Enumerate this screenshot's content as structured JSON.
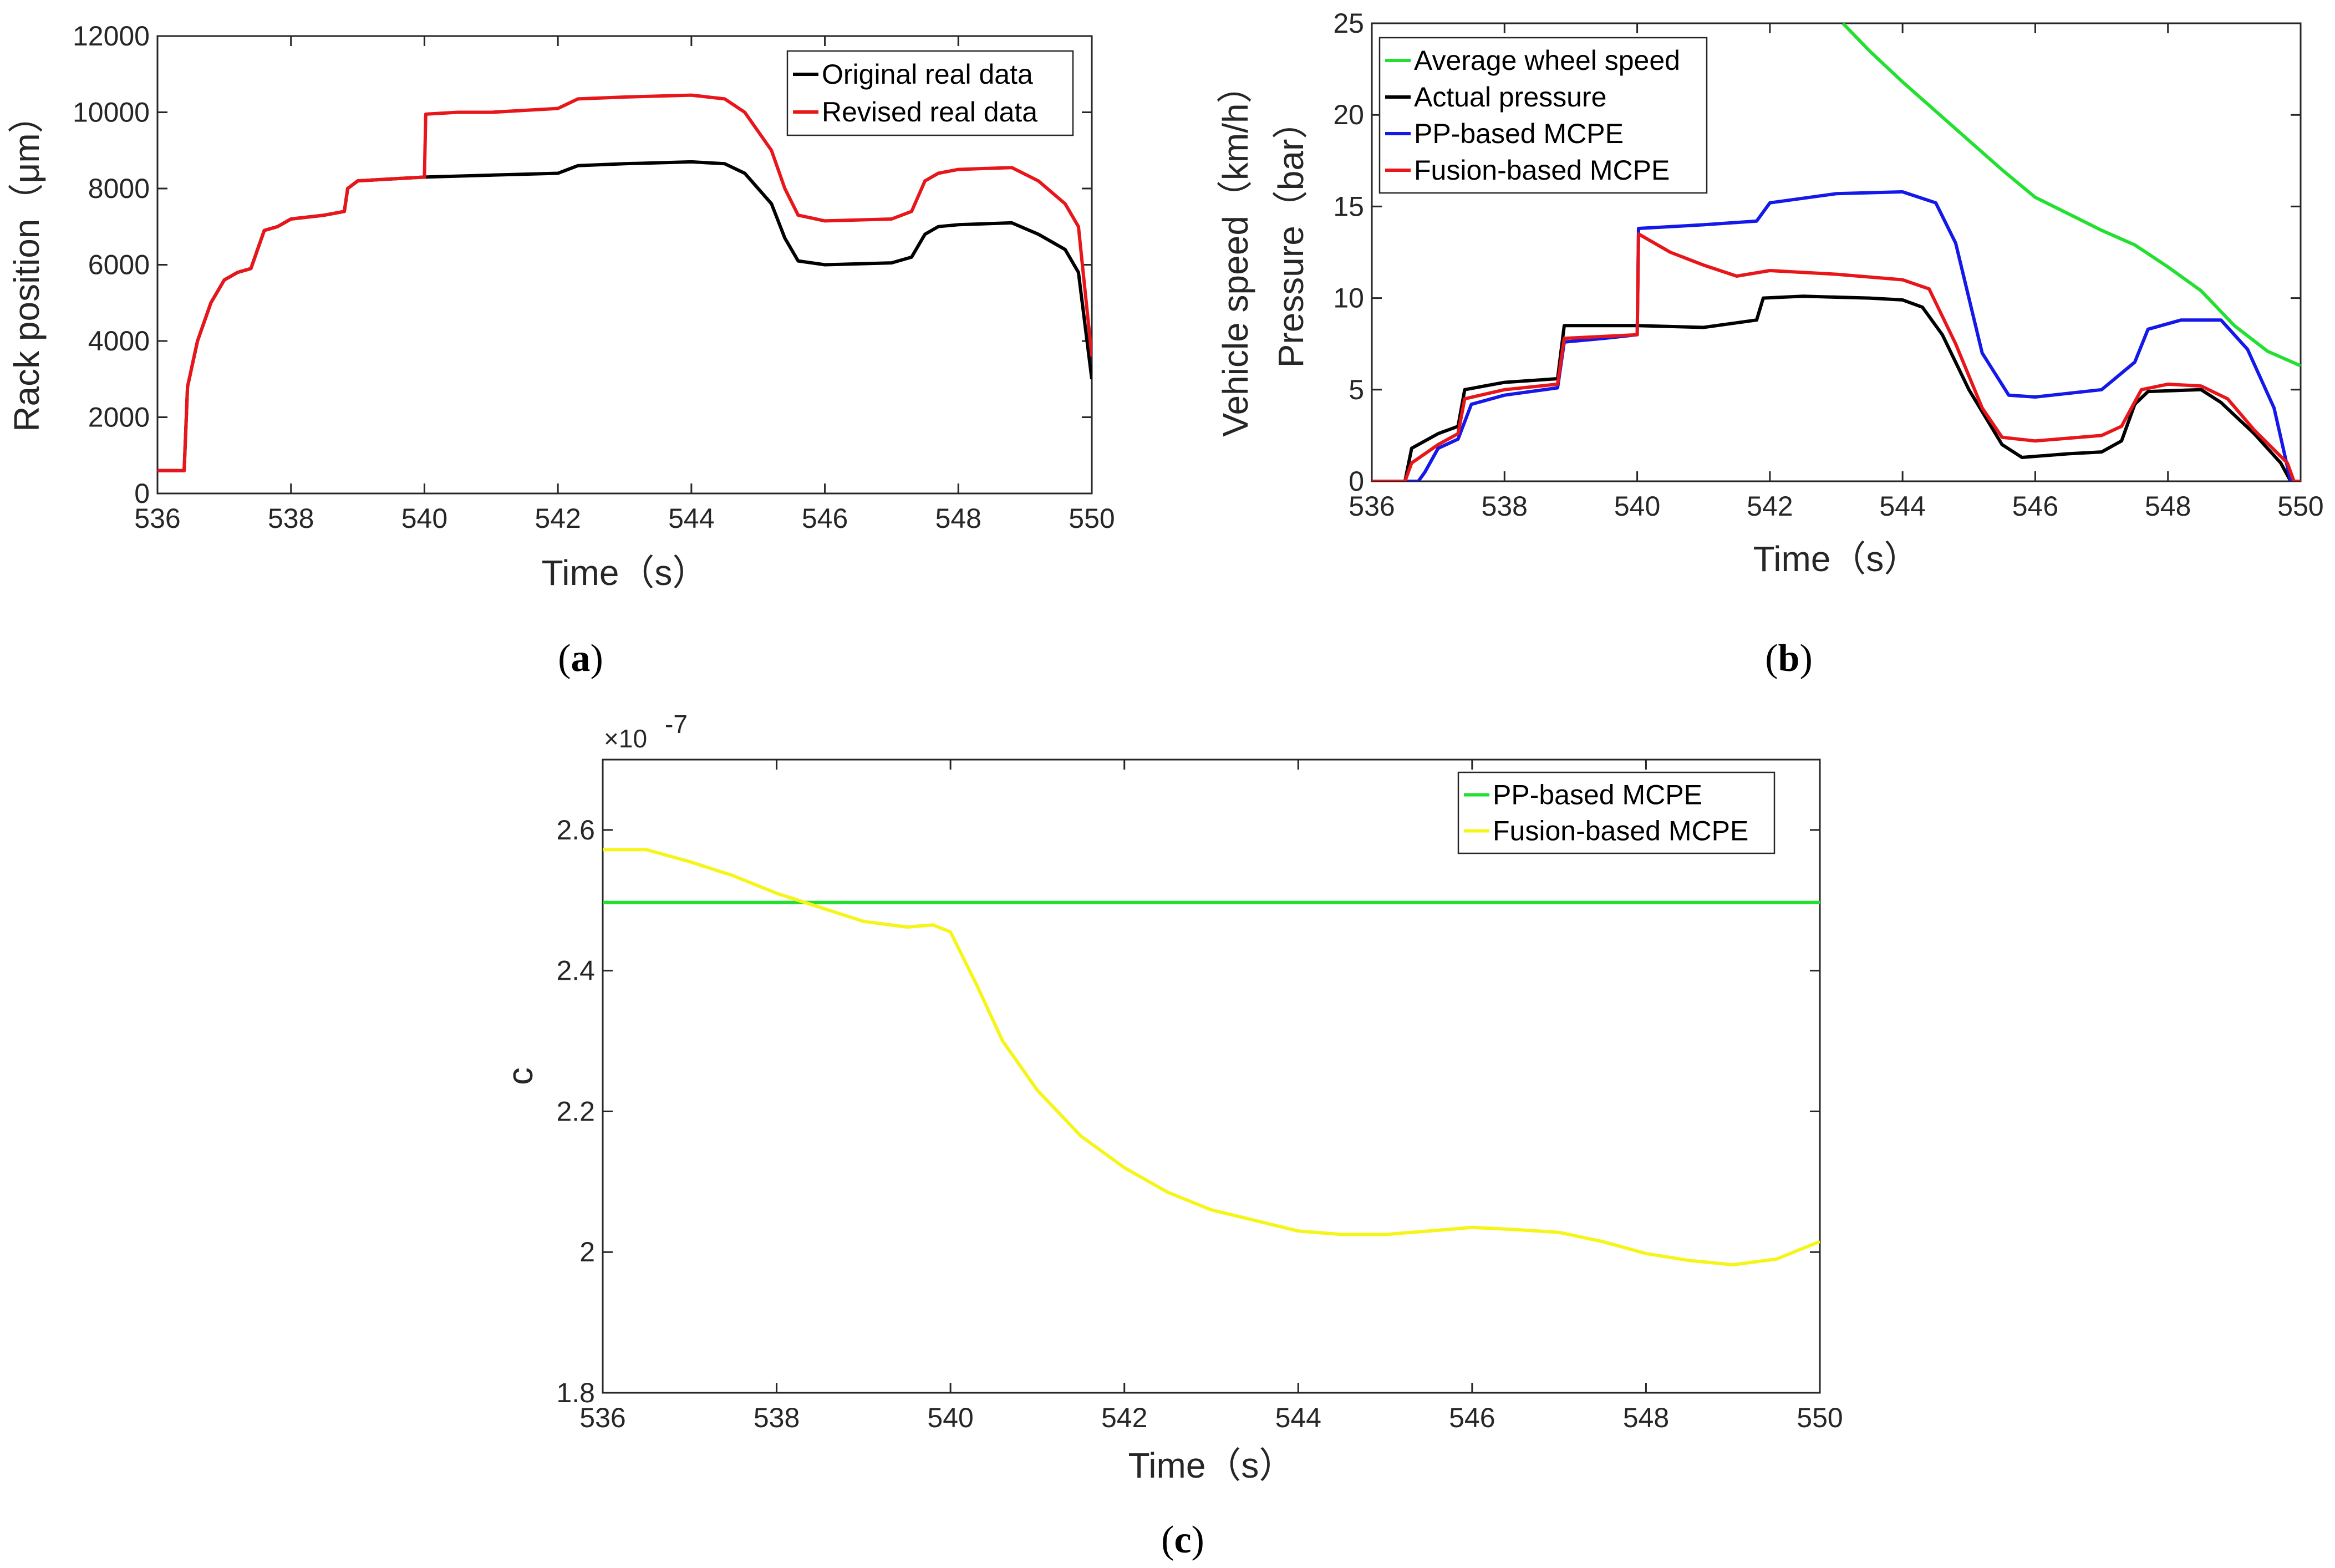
{
  "chart_data": [
    {
      "id": "a",
      "type": "line",
      "caption_letter": "a",
      "xlabel": "Time（s）",
      "ylabel": "Rack position（μm）",
      "xlim": [
        536,
        550
      ],
      "ylim": [
        0,
        12000
      ],
      "xticks": [
        536,
        538,
        540,
        542,
        544,
        546,
        548,
        550
      ],
      "yticks": [
        0,
        2000,
        4000,
        6000,
        8000,
        10000,
        12000
      ],
      "legend_position": "top-right",
      "series": [
        {
          "name": "Original real data",
          "color": "#000000",
          "points": [
            [
              536,
              600
            ],
            [
              536.4,
              600
            ],
            [
              536.45,
              2800
            ],
            [
              536.6,
              4000
            ],
            [
              536.8,
              5000
            ],
            [
              537,
              5600
            ],
            [
              537.2,
              5800
            ],
            [
              537.4,
              5900
            ],
            [
              537.5,
              6400
            ],
            [
              537.6,
              6900
            ],
            [
              537.8,
              7000
            ],
            [
              538,
              7200
            ],
            [
              538.5,
              7300
            ],
            [
              538.8,
              7400
            ],
            [
              538.85,
              8000
            ],
            [
              539,
              8200
            ],
            [
              539.5,
              8250
            ],
            [
              540,
              8300
            ],
            [
              541,
              8350
            ],
            [
              542,
              8400
            ],
            [
              542.3,
              8600
            ],
            [
              543,
              8650
            ],
            [
              544,
              8700
            ],
            [
              544.5,
              8650
            ],
            [
              544.8,
              8400
            ],
            [
              545.2,
              7600
            ],
            [
              545.4,
              6700
            ],
            [
              545.6,
              6100
            ],
            [
              546,
              6000
            ],
            [
              547,
              6050
            ],
            [
              547.3,
              6200
            ],
            [
              547.5,
              6800
            ],
            [
              547.7,
              7000
            ],
            [
              548,
              7050
            ],
            [
              548.8,
              7100
            ],
            [
              549.2,
              6800
            ],
            [
              549.6,
              6400
            ],
            [
              549.8,
              5800
            ],
            [
              550,
              3000
            ]
          ]
        },
        {
          "name": "Revised real data",
          "color": "#e8161b",
          "points": [
            [
              536,
              600
            ],
            [
              536.4,
              600
            ],
            [
              536.45,
              2800
            ],
            [
              536.6,
              4000
            ],
            [
              536.8,
              5000
            ],
            [
              537,
              5600
            ],
            [
              537.2,
              5800
            ],
            [
              537.4,
              5900
            ],
            [
              537.5,
              6400
            ],
            [
              537.6,
              6900
            ],
            [
              537.8,
              7000
            ],
            [
              538,
              7200
            ],
            [
              538.5,
              7300
            ],
            [
              538.8,
              7400
            ],
            [
              538.85,
              8000
            ],
            [
              539,
              8200
            ],
            [
              539.5,
              8250
            ],
            [
              540,
              8300
            ],
            [
              540.02,
              9950
            ],
            [
              540.5,
              10000
            ],
            [
              541,
              10000
            ],
            [
              542,
              10100
            ],
            [
              542.3,
              10350
            ],
            [
              543,
              10400
            ],
            [
              544,
              10450
            ],
            [
              544.5,
              10350
            ],
            [
              544.8,
              10000
            ],
            [
              545.2,
              9000
            ],
            [
              545.4,
              8000
            ],
            [
              545.6,
              7300
            ],
            [
              546,
              7150
            ],
            [
              547,
              7200
            ],
            [
              547.3,
              7400
            ],
            [
              547.5,
              8200
            ],
            [
              547.7,
              8400
            ],
            [
              548,
              8500
            ],
            [
              548.8,
              8550
            ],
            [
              549.2,
              8200
            ],
            [
              549.6,
              7600
            ],
            [
              549.8,
              7000
            ],
            [
              550,
              3600
            ]
          ]
        }
      ]
    },
    {
      "id": "b",
      "type": "line",
      "caption_letter": "b",
      "xlabel": "Time（s）",
      "ylabel_lines": [
        "Vehicle speed（km/h）",
        "Pressure（bar）"
      ],
      "xlim": [
        536,
        550
      ],
      "ylim": [
        0,
        25
      ],
      "xticks": [
        536,
        538,
        540,
        542,
        544,
        546,
        548,
        550
      ],
      "yticks": [
        0,
        5,
        10,
        15,
        20,
        25
      ],
      "legend_position": "top-left",
      "series": [
        {
          "name": "Average wheel speed",
          "color": "#23e030",
          "points": [
            [
              543.1,
              25
            ],
            [
              543.5,
              23.5
            ],
            [
              544,
              21.8
            ],
            [
              544.5,
              20.2
            ],
            [
              545,
              18.6
            ],
            [
              545.5,
              17
            ],
            [
              546,
              15.5
            ],
            [
              546.5,
              14.6
            ],
            [
              547,
              13.7
            ],
            [
              547.5,
              12.9
            ],
            [
              548,
              11.7
            ],
            [
              548.5,
              10.4
            ],
            [
              549,
              8.5
            ],
            [
              549.5,
              7.1
            ],
            [
              550,
              6.3
            ]
          ]
        },
        {
          "name": "Actual pressure",
          "color": "#000000",
          "points": [
            [
              536,
              0
            ],
            [
              536.5,
              0
            ],
            [
              536.6,
              1.8
            ],
            [
              537,
              2.6
            ],
            [
              537.3,
              3.0
            ],
            [
              537.4,
              5.0
            ],
            [
              538,
              5.4
            ],
            [
              538.8,
              5.6
            ],
            [
              538.9,
              8.5
            ],
            [
              540,
              8.5
            ],
            [
              541,
              8.4
            ],
            [
              541.8,
              8.8
            ],
            [
              541.9,
              10
            ],
            [
              542.5,
              10.1
            ],
            [
              543.5,
              10.0
            ],
            [
              544,
              9.9
            ],
            [
              544.3,
              9.5
            ],
            [
              544.6,
              8.0
            ],
            [
              545,
              5.0
            ],
            [
              545.5,
              2.0
            ],
            [
              545.8,
              1.3
            ],
            [
              546.5,
              1.5
            ],
            [
              547,
              1.6
            ],
            [
              547.3,
              2.2
            ],
            [
              547.5,
              4.2
            ],
            [
              547.7,
              4.9
            ],
            [
              548.5,
              5.0
            ],
            [
              548.8,
              4.3
            ],
            [
              549.3,
              2.6
            ],
            [
              549.7,
              1.0
            ],
            [
              549.85,
              0
            ],
            [
              550,
              0
            ]
          ]
        },
        {
          "name": "PP-based MCPE",
          "color": "#1418e8",
          "points": [
            [
              536,
              0
            ],
            [
              536.7,
              0
            ],
            [
              536.8,
              0.5
            ],
            [
              537,
              1.8
            ],
            [
              537.3,
              2.3
            ],
            [
              537.5,
              4.2
            ],
            [
              538,
              4.7
            ],
            [
              538.8,
              5.1
            ],
            [
              538.9,
              7.6
            ],
            [
              539.5,
              7.8
            ],
            [
              540,
              8.0
            ],
            [
              540.02,
              13.8
            ],
            [
              541,
              14.0
            ],
            [
              541.8,
              14.2
            ],
            [
              542,
              15.2
            ],
            [
              543,
              15.7
            ],
            [
              544,
              15.8
            ],
            [
              544.5,
              15.2
            ],
            [
              544.8,
              13.0
            ],
            [
              545.2,
              7.0
            ],
            [
              545.6,
              4.7
            ],
            [
              546,
              4.6
            ],
            [
              547,
              5.0
            ],
            [
              547.5,
              6.5
            ],
            [
              547.7,
              8.3
            ],
            [
              548.2,
              8.8
            ],
            [
              548.8,
              8.8
            ],
            [
              549.2,
              7.2
            ],
            [
              549.6,
              4.0
            ],
            [
              549.85,
              0
            ],
            [
              550,
              0
            ]
          ]
        },
        {
          "name": "Fusion-based MCPE",
          "color": "#e8161b",
          "points": [
            [
              536,
              0
            ],
            [
              536.5,
              0
            ],
            [
              536.6,
              1.0
            ],
            [
              537,
              2.0
            ],
            [
              537.3,
              2.6
            ],
            [
              537.4,
              4.5
            ],
            [
              538,
              5.0
            ],
            [
              538.8,
              5.3
            ],
            [
              538.9,
              7.8
            ],
            [
              540,
              8.0
            ],
            [
              540.02,
              13.5
            ],
            [
              540.5,
              12.5
            ],
            [
              541,
              11.8
            ],
            [
              541.5,
              11.2
            ],
            [
              542,
              11.5
            ],
            [
              543,
              11.3
            ],
            [
              544,
              11.0
            ],
            [
              544.4,
              10.5
            ],
            [
              544.8,
              7.5
            ],
            [
              545.2,
              4.0
            ],
            [
              545.5,
              2.4
            ],
            [
              546,
              2.2
            ],
            [
              547,
              2.5
            ],
            [
              547.3,
              3.0
            ],
            [
              547.6,
              5.0
            ],
            [
              548,
              5.3
            ],
            [
              548.5,
              5.2
            ],
            [
              548.9,
              4.5
            ],
            [
              549.3,
              2.8
            ],
            [
              549.8,
              1.0
            ],
            [
              549.9,
              0
            ],
            [
              550,
              0
            ]
          ]
        }
      ]
    },
    {
      "id": "c",
      "type": "line",
      "caption_letter": "c",
      "xlabel": "Time（s）",
      "ylabel": "c",
      "exponent_label": "×10",
      "exponent_power": "-7",
      "xlim": [
        536,
        550
      ],
      "ylim": [
        1.8,
        2.7
      ],
      "xticks": [
        536,
        538,
        540,
        542,
        544,
        546,
        548,
        550
      ],
      "yticks": [
        1.8,
        2,
        2.2,
        2.4,
        2.6
      ],
      "ytick_labels": [
        "1.8",
        "2",
        "2.2",
        "2.4",
        "2.6"
      ],
      "legend_position": "top-right",
      "series": [
        {
          "name": "PP-based MCPE",
          "color": "#23e030",
          "points": [
            [
              536,
              2.497
            ],
            [
              550,
              2.497
            ]
          ]
        },
        {
          "name": "Fusion-based MCPE",
          "color": "#f5f51a",
          "points": [
            [
              536,
              2.572
            ],
            [
              536.5,
              2.572
            ],
            [
              537,
              2.555
            ],
            [
              537.5,
              2.535
            ],
            [
              538,
              2.51
            ],
            [
              538.5,
              2.49
            ],
            [
              539,
              2.47
            ],
            [
              539.5,
              2.462
            ],
            [
              539.8,
              2.465
            ],
            [
              540,
              2.455
            ],
            [
              540.3,
              2.38
            ],
            [
              540.6,
              2.3
            ],
            [
              541,
              2.23
            ],
            [
              541.5,
              2.165
            ],
            [
              542,
              2.12
            ],
            [
              542.5,
              2.085
            ],
            [
              543,
              2.06
            ],
            [
              543.5,
              2.045
            ],
            [
              544,
              2.03
            ],
            [
              544.5,
              2.025
            ],
            [
              545,
              2.025
            ],
            [
              545.5,
              2.03
            ],
            [
              546,
              2.035
            ],
            [
              546.5,
              2.032
            ],
            [
              547,
              2.028
            ],
            [
              547.5,
              2.015
            ],
            [
              548,
              1.998
            ],
            [
              548.5,
              1.988
            ],
            [
              549,
              1.982
            ],
            [
              549.5,
              1.99
            ],
            [
              550,
              2.015
            ]
          ]
        }
      ]
    }
  ]
}
